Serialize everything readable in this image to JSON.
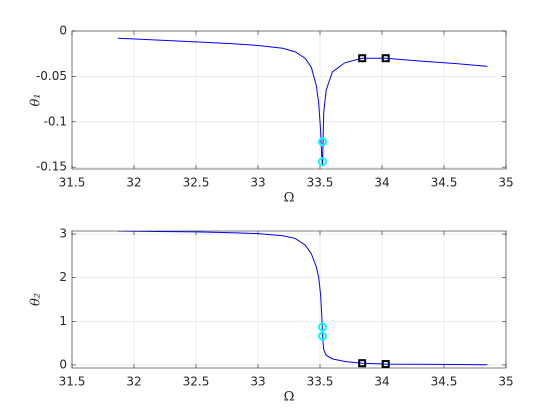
{
  "chart_data": [
    {
      "type": "line",
      "xlabel": "Ω",
      "ylabel": "θ₁",
      "xlim": [
        31.5,
        35
      ],
      "xticks": [
        31.5,
        32,
        32.5,
        33,
        33.5,
        34,
        34.5,
        35
      ],
      "ylim": [
        -0.152,
        0
      ],
      "yticks": [
        -0.15,
        -0.1,
        -0.05,
        0
      ],
      "grid": true,
      "series": [
        {
          "color": "#0000ff",
          "marker": "none",
          "x": [
            31.87,
            32.2,
            32.5,
            32.8,
            33.0,
            33.2,
            33.3,
            33.38,
            33.43,
            33.47,
            33.49,
            33.505,
            33.515,
            33.52,
            33.525,
            33.53,
            33.55,
            33.6,
            33.7,
            33.84,
            34.03,
            34.3,
            34.6,
            34.85
          ],
          "values": [
            -0.008,
            -0.01,
            -0.012,
            -0.014,
            -0.016,
            -0.019,
            -0.023,
            -0.03,
            -0.04,
            -0.06,
            -0.08,
            -0.11,
            -0.14,
            -0.149,
            -0.12,
            -0.09,
            -0.065,
            -0.045,
            -0.035,
            -0.03,
            -0.03,
            -0.033,
            -0.036,
            -0.039
          ]
        },
        {
          "color": "#00ffff",
          "marker": "circle",
          "x": [
            33.52,
            33.52
          ],
          "values": [
            -0.122,
            -0.144
          ]
        },
        {
          "color": "#000000",
          "marker": "square",
          "x": [
            33.84,
            34.03
          ],
          "values": [
            -0.03,
            -0.03
          ]
        }
      ]
    },
    {
      "type": "line",
      "xlabel": "Ω",
      "ylabel": "θ₂",
      "xlim": [
        31.5,
        35
      ],
      "xticks": [
        31.5,
        32,
        32.5,
        33,
        33.5,
        34,
        34.5,
        35
      ],
      "ylim": [
        -0.07,
        3.07
      ],
      "yticks": [
        0,
        1,
        2,
        3
      ],
      "grid": true,
      "series": [
        {
          "color": "#0000ff",
          "marker": "none",
          "x": [
            31.87,
            32.2,
            32.5,
            32.8,
            33.0,
            33.2,
            33.3,
            33.38,
            33.43,
            33.47,
            33.49,
            33.505,
            33.515,
            33.52,
            33.525,
            33.53,
            33.55,
            33.6,
            33.7,
            33.84,
            34.03,
            34.3,
            34.6,
            34.85
          ],
          "values": [
            3.07,
            3.06,
            3.05,
            3.03,
            3.01,
            2.96,
            2.9,
            2.75,
            2.55,
            2.25,
            2.0,
            1.6,
            1.1,
            0.75,
            0.5,
            0.35,
            0.22,
            0.14,
            0.08,
            0.04,
            0.02,
            0.015,
            0.01,
            0.005
          ]
        },
        {
          "color": "#00ffff",
          "marker": "circle",
          "x": [
            33.52,
            33.52
          ],
          "values": [
            0.87,
            0.66
          ]
        },
        {
          "color": "#000000",
          "marker": "square",
          "x": [
            33.84,
            34.03
          ],
          "values": [
            0.04,
            0.02
          ]
        }
      ]
    }
  ]
}
